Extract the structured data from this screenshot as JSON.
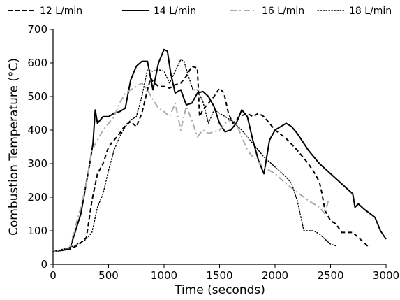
{
  "chart_data": {
    "type": "line",
    "title": "",
    "xlabel": "Time (seconds)",
    "ylabel": "Combustion Temperature (°C)",
    "xlim": [
      0,
      3000
    ],
    "ylim": [
      0,
      700
    ],
    "xticks": [
      "0",
      "500",
      "1000",
      "1500",
      "2000",
      "2500",
      "3000"
    ],
    "yticks": [
      "0",
      "100",
      "200",
      "300",
      "400",
      "500",
      "600",
      "700"
    ],
    "grid": false,
    "legend_position": "top",
    "series": [
      {
        "name": "12 L/min",
        "color": "#000000",
        "dash": "dashed",
        "points": [
          [
            0,
            38
          ],
          [
            150,
            45
          ],
          [
            230,
            58
          ],
          [
            300,
            80
          ],
          [
            350,
            190
          ],
          [
            400,
            270
          ],
          [
            450,
            300
          ],
          [
            500,
            350
          ],
          [
            550,
            370
          ],
          [
            600,
            390
          ],
          [
            650,
            415
          ],
          [
            700,
            425
          ],
          [
            750,
            410
          ],
          [
            800,
            450
          ],
          [
            850,
            520
          ],
          [
            880,
            555
          ],
          [
            900,
            545
          ],
          [
            950,
            530
          ],
          [
            1000,
            530
          ],
          [
            1050,
            525
          ],
          [
            1100,
            535
          ],
          [
            1150,
            540
          ],
          [
            1200,
            560
          ],
          [
            1250,
            590
          ],
          [
            1300,
            585
          ],
          [
            1320,
            440
          ],
          [
            1350,
            460
          ],
          [
            1400,
            480
          ],
          [
            1450,
            500
          ],
          [
            1500,
            525
          ],
          [
            1540,
            510
          ],
          [
            1580,
            450
          ],
          [
            1620,
            420
          ],
          [
            1680,
            440
          ],
          [
            1750,
            450
          ],
          [
            1800,
            440
          ],
          [
            1850,
            450
          ],
          [
            1900,
            440
          ],
          [
            1950,
            420
          ],
          [
            2000,
            400
          ],
          [
            2100,
            375
          ],
          [
            2200,
            340
          ],
          [
            2300,
            300
          ],
          [
            2360,
            270
          ],
          [
            2400,
            245
          ],
          [
            2420,
            215
          ],
          [
            2450,
            160
          ],
          [
            2500,
            130
          ],
          [
            2550,
            120
          ],
          [
            2600,
            95
          ],
          [
            2700,
            95
          ],
          [
            2750,
            80
          ],
          [
            2800,
            65
          ],
          [
            2850,
            50
          ]
        ]
      },
      {
        "name": "14 L/min",
        "color": "#000000",
        "dash": "solid",
        "points": [
          [
            0,
            38
          ],
          [
            150,
            45
          ],
          [
            250,
            150
          ],
          [
            330,
            300
          ],
          [
            360,
            360
          ],
          [
            380,
            460
          ],
          [
            400,
            420
          ],
          [
            450,
            440
          ],
          [
            500,
            440
          ],
          [
            550,
            450
          ],
          [
            600,
            455
          ],
          [
            650,
            465
          ],
          [
            700,
            550
          ],
          [
            750,
            590
          ],
          [
            800,
            605
          ],
          [
            850,
            605
          ],
          [
            900,
            520
          ],
          [
            950,
            600
          ],
          [
            1000,
            640
          ],
          [
            1030,
            635
          ],
          [
            1060,
            570
          ],
          [
            1100,
            510
          ],
          [
            1150,
            520
          ],
          [
            1200,
            475
          ],
          [
            1250,
            480
          ],
          [
            1300,
            510
          ],
          [
            1350,
            515
          ],
          [
            1400,
            500
          ],
          [
            1450,
            470
          ],
          [
            1500,
            420
          ],
          [
            1550,
            395
          ],
          [
            1600,
            400
          ],
          [
            1650,
            420
          ],
          [
            1700,
            460
          ],
          [
            1750,
            440
          ],
          [
            1800,
            370
          ],
          [
            1850,
            310
          ],
          [
            1900,
            270
          ],
          [
            1950,
            370
          ],
          [
            2000,
            400
          ],
          [
            2050,
            410
          ],
          [
            2100,
            420
          ],
          [
            2150,
            410
          ],
          [
            2200,
            390
          ],
          [
            2300,
            340
          ],
          [
            2400,
            300
          ],
          [
            2500,
            270
          ],
          [
            2600,
            240
          ],
          [
            2700,
            210
          ],
          [
            2720,
            170
          ],
          [
            2750,
            180
          ],
          [
            2800,
            165
          ],
          [
            2900,
            140
          ],
          [
            2950,
            100
          ],
          [
            3000,
            75
          ]
        ]
      },
      {
        "name": "16 L/min",
        "color": "#aaaaaa",
        "dash": "dashdot",
        "points": [
          [
            0,
            38
          ],
          [
            150,
            50
          ],
          [
            250,
            170
          ],
          [
            300,
            240
          ],
          [
            350,
            340
          ],
          [
            400,
            370
          ],
          [
            450,
            400
          ],
          [
            500,
            420
          ],
          [
            550,
            440
          ],
          [
            600,
            480
          ],
          [
            650,
            510
          ],
          [
            700,
            520
          ],
          [
            750,
            530
          ],
          [
            800,
            540
          ],
          [
            850,
            520
          ],
          [
            900,
            490
          ],
          [
            950,
            465
          ],
          [
            1000,
            455
          ],
          [
            1050,
            440
          ],
          [
            1100,
            480
          ],
          [
            1150,
            400
          ],
          [
            1200,
            470
          ],
          [
            1250,
            430
          ],
          [
            1300,
            380
          ],
          [
            1350,
            400
          ],
          [
            1400,
            390
          ],
          [
            1500,
            400
          ],
          [
            1550,
            420
          ],
          [
            1600,
            430
          ],
          [
            1650,
            420
          ],
          [
            1700,
            380
          ],
          [
            1750,
            340
          ],
          [
            1800,
            320
          ],
          [
            1900,
            290
          ],
          [
            2000,
            270
          ],
          [
            2100,
            240
          ],
          [
            2200,
            215
          ],
          [
            2300,
            190
          ],
          [
            2400,
            170
          ],
          [
            2450,
            150
          ],
          [
            2480,
            190
          ]
        ]
      },
      {
        "name": "18 L/min",
        "color": "#000000",
        "dash": "dotted",
        "points": [
          [
            0,
            38
          ],
          [
            150,
            50
          ],
          [
            250,
            65
          ],
          [
            300,
            75
          ],
          [
            350,
            95
          ],
          [
            400,
            170
          ],
          [
            450,
            210
          ],
          [
            500,
            280
          ],
          [
            550,
            340
          ],
          [
            600,
            380
          ],
          [
            650,
            410
          ],
          [
            700,
            430
          ],
          [
            750,
            440
          ],
          [
            800,
            500
          ],
          [
            850,
            580
          ],
          [
            900,
            575
          ],
          [
            950,
            580
          ],
          [
            1000,
            575
          ],
          [
            1050,
            540
          ],
          [
            1100,
            575
          ],
          [
            1150,
            610
          ],
          [
            1180,
            605
          ],
          [
            1220,
            560
          ],
          [
            1260,
            520
          ],
          [
            1300,
            520
          ],
          [
            1350,
            485
          ],
          [
            1400,
            420
          ],
          [
            1450,
            460
          ],
          [
            1500,
            450
          ],
          [
            1550,
            440
          ],
          [
            1600,
            430
          ],
          [
            1700,
            400
          ],
          [
            1800,
            360
          ],
          [
            1900,
            320
          ],
          [
            2000,
            290
          ],
          [
            2100,
            260
          ],
          [
            2150,
            240
          ],
          [
            2200,
            190
          ],
          [
            2260,
            100
          ],
          [
            2300,
            100
          ],
          [
            2350,
            100
          ],
          [
            2400,
            90
          ],
          [
            2450,
            75
          ],
          [
            2500,
            60
          ],
          [
            2550,
            55
          ]
        ]
      }
    ]
  }
}
